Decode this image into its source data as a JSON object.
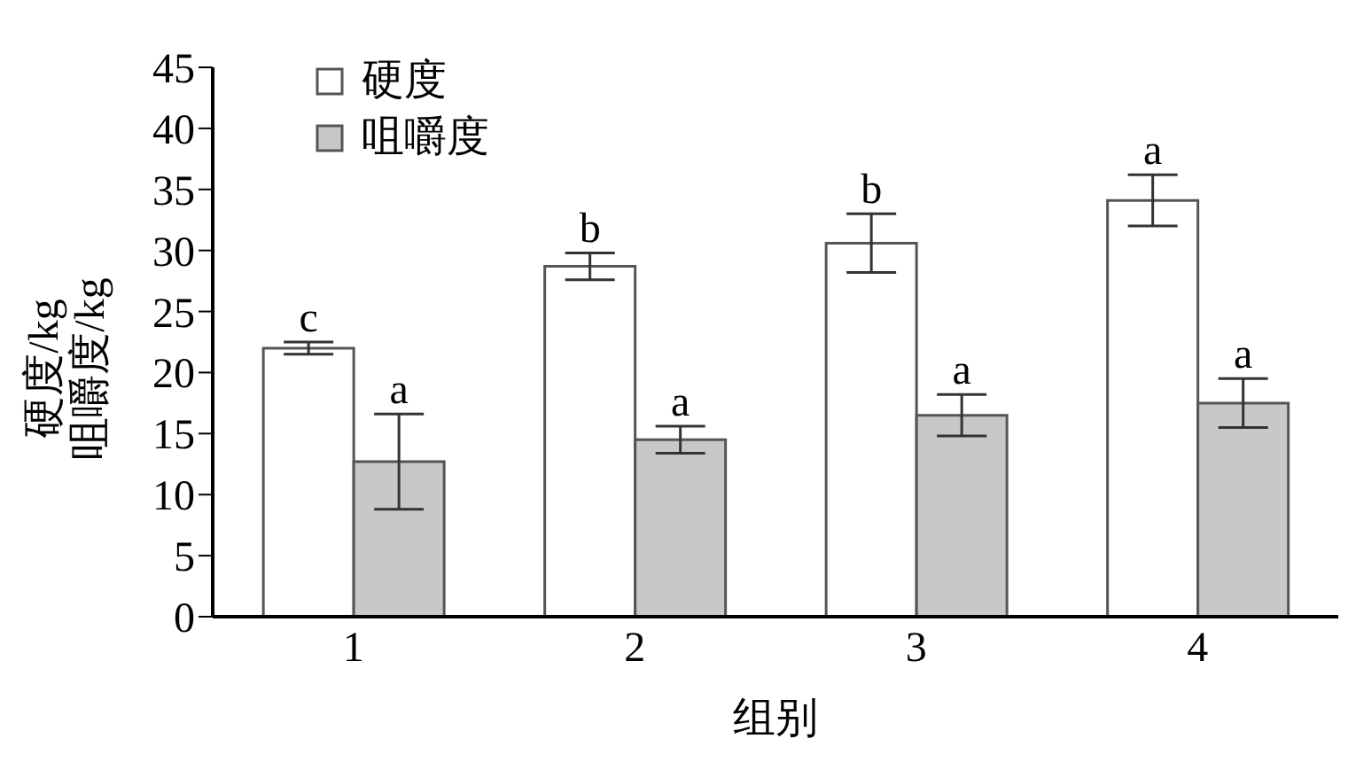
{
  "chart_data": {
    "type": "bar",
    "xlabel": "组别",
    "ylabel": "硬度/kg\n咀嚼度/kg",
    "categories": [
      "1",
      "2",
      "3",
      "4"
    ],
    "series": [
      {
        "name": "硬度",
        "color": "#ffffff",
        "values": [
          22.0,
          28.7,
          30.6,
          34.1
        ],
        "errors": [
          0.5,
          1.1,
          2.4,
          2.1
        ],
        "value_labels": [
          "c",
          "b",
          "b",
          "a"
        ]
      },
      {
        "name": "咀嚼度",
        "color": "#c8c8c8",
        "values": [
          12.7,
          14.5,
          16.5,
          17.5
        ],
        "errors": [
          3.9,
          1.1,
          1.7,
          2.0
        ],
        "value_labels": [
          "a",
          "a",
          "a",
          "a"
        ]
      }
    ],
    "ylim": [
      0,
      45
    ],
    "yticks": [
      0,
      5,
      10,
      15,
      20,
      25,
      30,
      35,
      40,
      45
    ],
    "grid": false,
    "legend": "top left"
  }
}
